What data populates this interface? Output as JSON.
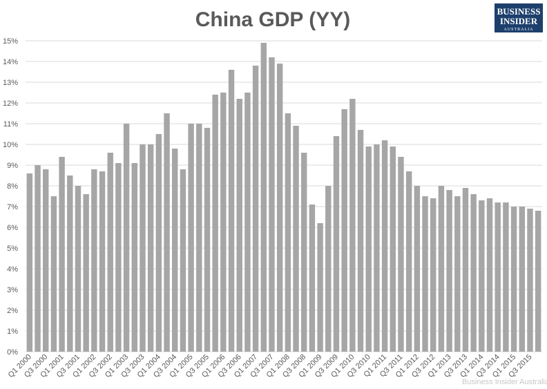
{
  "chart_data": {
    "type": "bar",
    "title": "China GDP (YY)",
    "categories": [
      "Q1 2000",
      null,
      "Q3 2000",
      null,
      "Q1 2001",
      null,
      "Q3 2001",
      null,
      "Q1 2002",
      null,
      "Q3 2002",
      null,
      "Q1 2003",
      null,
      "Q3 2003",
      null,
      "Q1 2004",
      null,
      "Q3 2004",
      null,
      "Q1 2005",
      null,
      "Q3 2005",
      null,
      "Q1 2006",
      null,
      "Q3 2006",
      null,
      "Q1 2007",
      null,
      "Q3 2007",
      null,
      "Q1 2008",
      null,
      "Q3 2008",
      null,
      "Q1 2009",
      null,
      "Q3 2009",
      null,
      "Q1 2010",
      null,
      "Q3 2010",
      null,
      "Q1 2011",
      null,
      "Q3 2011",
      null,
      "Q1 2012",
      null,
      "Q3 2012",
      null,
      "Q1 2013",
      null,
      "Q3 2013",
      null,
      "Q1 2014",
      null,
      "Q3 2014",
      null,
      "Q1 2015",
      null,
      "Q3 2015",
      null
    ],
    "values": [
      8.6,
      9.0,
      8.8,
      7.5,
      9.4,
      8.5,
      8.0,
      7.6,
      8.8,
      8.7,
      9.6,
      9.1,
      11.0,
      9.1,
      10.0,
      10.0,
      10.5,
      11.5,
      9.8,
      8.8,
      11.0,
      11.0,
      10.8,
      12.4,
      12.5,
      13.6,
      12.2,
      12.5,
      13.8,
      14.9,
      14.2,
      13.9,
      11.5,
      10.9,
      9.6,
      7.1,
      6.2,
      8.0,
      10.4,
      11.7,
      12.2,
      10.7,
      9.9,
      10.0,
      10.2,
      9.9,
      9.4,
      8.7,
      8.0,
      7.5,
      7.4,
      8.0,
      7.8,
      7.5,
      7.9,
      7.6,
      7.3,
      7.4,
      7.2,
      7.2,
      7.0,
      7.0,
      6.9,
      6.8
    ],
    "color": "#a6a6a6",
    "ylim": [
      0,
      15
    ],
    "yticks": [
      {
        "value": 0,
        "label": "0%"
      },
      {
        "value": 1,
        "label": "1%"
      },
      {
        "value": 2,
        "label": "2%"
      },
      {
        "value": 3,
        "label": "3%"
      },
      {
        "value": 4,
        "label": "4%"
      },
      {
        "value": 5,
        "label": "5%"
      },
      {
        "value": 6,
        "label": "6%"
      },
      {
        "value": 7,
        "label": "7%"
      },
      {
        "value": 8,
        "label": "8%"
      },
      {
        "value": 9,
        "label": "9%"
      },
      {
        "value": 10,
        "label": "10%"
      },
      {
        "value": 11,
        "label": "11%"
      },
      {
        "value": 12,
        "label": "12%"
      },
      {
        "value": 13,
        "label": "13%"
      },
      {
        "value": 14,
        "label": "14%"
      },
      {
        "value": 15,
        "label": "15%"
      }
    ],
    "grid": true
  },
  "logo": {
    "line1": "BUSINESS",
    "line2": "INSIDER",
    "line3": "AUSTRALIA"
  },
  "watermark": "Business Insider Australia"
}
